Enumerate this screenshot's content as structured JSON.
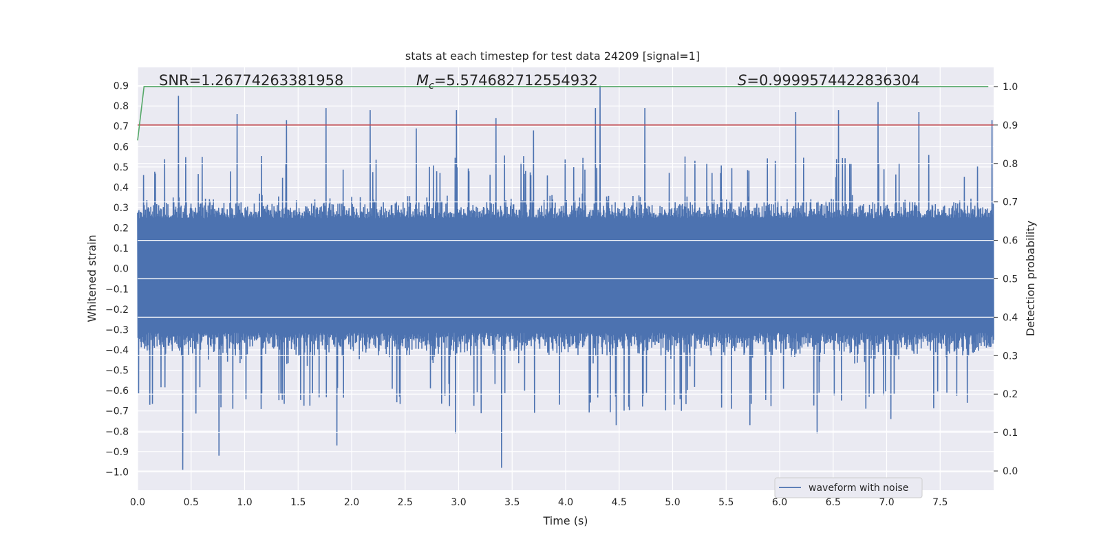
{
  "chart_data": {
    "type": "line",
    "title": "stats at each timestep for test data 24209 [signal=1]",
    "xlabel": "Time (s)",
    "ylabel": "Whitened strain",
    "ylabel_right": "Detection probability",
    "xlim": [
      0.0,
      8.0
    ],
    "ylim": [
      -1.09,
      0.99
    ],
    "ylim_right": [
      -0.05,
      1.05
    ],
    "x_ticks": [
      "0.0",
      "0.5",
      "1.0",
      "1.5",
      "2.0",
      "2.5",
      "3.0",
      "3.5",
      "4.0",
      "4.5",
      "5.0",
      "5.5",
      "6.0",
      "6.5",
      "7.0",
      "7.5"
    ],
    "x_tick_values": [
      0.0,
      0.5,
      1.0,
      1.5,
      2.0,
      2.5,
      3.0,
      3.5,
      4.0,
      4.5,
      5.0,
      5.5,
      6.0,
      6.5,
      7.0,
      7.5
    ],
    "y_ticks": [
      "0.9",
      "0.8",
      "0.7",
      "0.6",
      "0.5",
      "0.4",
      "0.3",
      "0.2",
      "0.1",
      "0.0",
      "−0.1",
      "−0.2",
      "−0.3",
      "−0.4",
      "−0.5",
      "−0.6",
      "−0.7",
      "−0.8",
      "−0.9",
      "−1.0"
    ],
    "y_tick_values": [
      0.9,
      0.8,
      0.7,
      0.6,
      0.5,
      0.4,
      0.3,
      0.2,
      0.1,
      0.0,
      -0.1,
      -0.2,
      -0.3,
      -0.4,
      -0.5,
      -0.6,
      -0.7,
      -0.8,
      -0.9,
      -1.0
    ],
    "y_right_ticks": [
      "1.0",
      "0.9",
      "0.8",
      "0.7",
      "0.6",
      "0.5",
      "0.4",
      "0.3",
      "0.2",
      "0.1",
      "0.0"
    ],
    "y_right_tick_values": [
      1.0,
      0.9,
      0.8,
      0.7,
      0.6,
      0.5,
      0.4,
      0.3,
      0.2,
      0.1,
      0.0
    ],
    "annotations": {
      "snr": "SNR=1.26774263381958",
      "mc_prefix": "M",
      "mc_sub": "c",
      "mc_value": "=5.574682712554932",
      "s_prefix": "S",
      "s_value": "=0.9999574422836304"
    },
    "series": [
      {
        "name": "waveform with noise",
        "color": "#4c72b0",
        "kind": "noise",
        "x_range": [
          0.0,
          8.0
        ],
        "typical_upper": 0.33,
        "typical_lower": -0.42,
        "positive_peaks": [
          {
            "x": 0.38,
            "y": 0.85
          },
          {
            "x": 0.6,
            "y": 0.55
          },
          {
            "x": 0.93,
            "y": 0.76
          },
          {
            "x": 1.39,
            "y": 0.73
          },
          {
            "x": 1.76,
            "y": 0.79
          },
          {
            "x": 2.17,
            "y": 0.78
          },
          {
            "x": 2.6,
            "y": 0.69
          },
          {
            "x": 2.98,
            "y": 0.78
          },
          {
            "x": 3.35,
            "y": 0.74
          },
          {
            "x": 3.7,
            "y": 0.68
          },
          {
            "x": 4.28,
            "y": 0.79
          },
          {
            "x": 4.32,
            "y": 0.9
          },
          {
            "x": 4.74,
            "y": 0.79
          },
          {
            "x": 6.15,
            "y": 0.77
          },
          {
            "x": 6.55,
            "y": 0.78
          },
          {
            "x": 6.92,
            "y": 0.82
          },
          {
            "x": 7.3,
            "y": 0.77
          },
          {
            "x": 7.98,
            "y": 0.73
          }
        ],
        "negative_peaks": [
          {
            "x": 0.42,
            "y": -0.99
          },
          {
            "x": 0.76,
            "y": -0.92
          },
          {
            "x": 1.86,
            "y": -0.87
          },
          {
            "x": 2.97,
            "y": -0.81
          },
          {
            "x": 3.4,
            "y": -0.98
          },
          {
            "x": 4.47,
            "y": -0.77
          },
          {
            "x": 5.72,
            "y": -0.77
          },
          {
            "x": 6.35,
            "y": -0.81
          },
          {
            "x": 7.04,
            "y": -0.74
          },
          {
            "x": 7.75,
            "y": -0.66
          }
        ]
      },
      {
        "name": "threshold",
        "axis": "right",
        "color": "#c44e52",
        "x": [
          0.0,
          8.0
        ],
        "y": [
          0.9,
          0.9
        ]
      },
      {
        "name": "detection probability",
        "axis": "right",
        "color": "#55a868",
        "x": [
          0.0,
          0.06,
          7.95
        ],
        "y": [
          0.86,
          1.0,
          1.0
        ]
      }
    ],
    "legend": {
      "entries": [
        "waveform with noise"
      ],
      "position": "lower-right"
    },
    "grid": true
  }
}
